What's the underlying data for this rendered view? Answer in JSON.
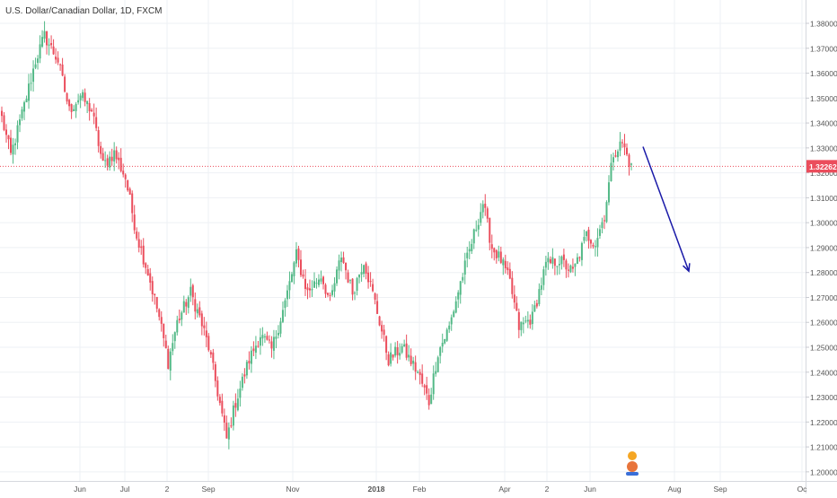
{
  "chart_data": {
    "type": "candlestick",
    "title": "U.S. Dollar/Canadian Dollar, 1D, FXCM",
    "y_ticks": [
      "1.38000",
      "1.37000",
      "1.36000",
      "1.35000",
      "1.34000",
      "1.33000",
      "1.32000",
      "1.31000",
      "1.30000",
      "1.29000",
      "1.28000",
      "1.27000",
      "1.26000",
      "1.25000",
      "1.24000",
      "1.23000",
      "1.22000",
      "1.21000",
      "1.20000"
    ],
    "ylim": [
      1.1965,
      1.3865
    ],
    "x_ticks": [
      "Jun",
      "Jul",
      "2",
      "Sep",
      "Nov",
      "2018",
      "Feb",
      "Apr",
      "2",
      "Jun",
      "Aug",
      "Sep",
      "Oc"
    ],
    "last_price_label": "1.32262",
    "last_price": 1.32262,
    "colors": {
      "up": "#53b987",
      "down": "#eb4d5c",
      "arrow": "#1a1aa8",
      "price_line": "#eb4d5c",
      "grid": "#eef0f4"
    },
    "anchors": [
      {
        "i": 0,
        "v": 1.342
      },
      {
        "i": 4,
        "v": 1.327
      },
      {
        "i": 10,
        "v": 1.347
      },
      {
        "i": 15,
        "v": 1.365
      },
      {
        "i": 19,
        "v": 1.375
      },
      {
        "i": 25,
        "v": 1.365
      },
      {
        "i": 30,
        "v": 1.345
      },
      {
        "i": 35,
        "v": 1.351
      },
      {
        "i": 40,
        "v": 1.345
      },
      {
        "i": 45,
        "v": 1.323
      },
      {
        "i": 50,
        "v": 1.328
      },
      {
        "i": 55,
        "v": 1.318
      },
      {
        "i": 60,
        "v": 1.295
      },
      {
        "i": 65,
        "v": 1.28
      },
      {
        "i": 70,
        "v": 1.262
      },
      {
        "i": 74,
        "v": 1.244
      },
      {
        "i": 78,
        "v": 1.26
      },
      {
        "i": 84,
        "v": 1.272
      },
      {
        "i": 88,
        "v": 1.262
      },
      {
        "i": 92,
        "v": 1.25
      },
      {
        "i": 96,
        "v": 1.232
      },
      {
        "i": 100,
        "v": 1.213
      },
      {
        "i": 104,
        "v": 1.228
      },
      {
        "i": 110,
        "v": 1.245
      },
      {
        "i": 115,
        "v": 1.255
      },
      {
        "i": 120,
        "v": 1.249
      },
      {
        "i": 126,
        "v": 1.268
      },
      {
        "i": 131,
        "v": 1.287
      },
      {
        "i": 136,
        "v": 1.272
      },
      {
        "i": 142,
        "v": 1.279
      },
      {
        "i": 146,
        "v": 1.268
      },
      {
        "i": 151,
        "v": 1.287
      },
      {
        "i": 156,
        "v": 1.272
      },
      {
        "i": 161,
        "v": 1.285
      },
      {
        "i": 166,
        "v": 1.268
      },
      {
        "i": 172,
        "v": 1.245
      },
      {
        "i": 178,
        "v": 1.25
      },
      {
        "i": 185,
        "v": 1.24
      },
      {
        "i": 190,
        "v": 1.228
      },
      {
        "i": 194,
        "v": 1.248
      },
      {
        "i": 199,
        "v": 1.258
      },
      {
        "i": 204,
        "v": 1.276
      },
      {
        "i": 209,
        "v": 1.292
      },
      {
        "i": 214,
        "v": 1.308
      },
      {
        "i": 218,
        "v": 1.29
      },
      {
        "i": 222,
        "v": 1.285
      },
      {
        "i": 226,
        "v": 1.276
      },
      {
        "i": 230,
        "v": 1.258
      },
      {
        "i": 236,
        "v": 1.262
      },
      {
        "i": 242,
        "v": 1.283
      },
      {
        "i": 248,
        "v": 1.285
      },
      {
        "i": 254,
        "v": 1.28
      },
      {
        "i": 260,
        "v": 1.295
      },
      {
        "i": 264,
        "v": 1.292
      },
      {
        "i": 268,
        "v": 1.303
      },
      {
        "i": 272,
        "v": 1.328
      },
      {
        "i": 276,
        "v": 1.332
      },
      {
        "i": 280,
        "v": 1.322
      }
    ],
    "arrow": {
      "from": {
        "date": "2018-06-22",
        "price": 1.3305
      },
      "to": {
        "date": "2018-07-31",
        "price": 1.2805
      }
    }
  }
}
